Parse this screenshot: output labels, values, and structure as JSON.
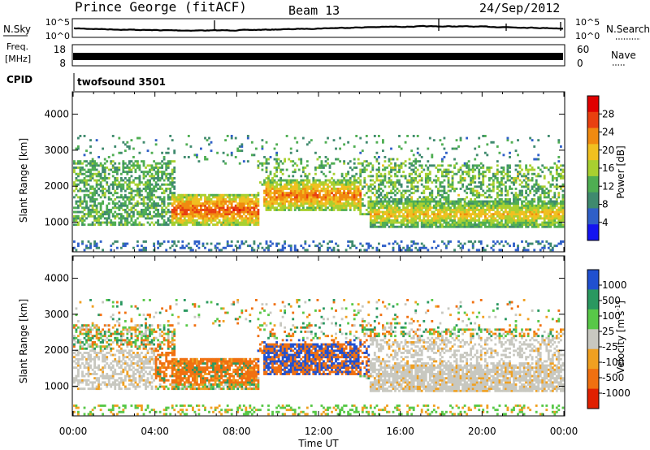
{
  "header": {
    "station": "Prince George (fitACF)",
    "beam": "Beam 13",
    "date": "24/Sep/2012"
  },
  "noise_panel": {
    "left_label": "N.Sky",
    "right_label": "N.Search",
    "left_ticks": [
      "10^5",
      "10^0"
    ],
    "right_ticks": [
      "10^5",
      "10^0"
    ]
  },
  "freq_panel": {
    "left_label_1": "Freq.",
    "left_label_2": "[MHz]",
    "right_label": "Nave",
    "left_ticks": [
      "18",
      "8"
    ],
    "right_ticks": [
      "60",
      "0"
    ]
  },
  "cpid_panel": {
    "label": "CPID",
    "value": "twofsound 3501"
  },
  "chart_data": [
    {
      "type": "heatmap",
      "name": "power",
      "ylabel": "Slant Range [km]",
      "y_ticks": [
        1000,
        2000,
        3000,
        4000
      ],
      "ylim": [
        200,
        4600
      ],
      "xlim_hours": [
        0,
        24
      ],
      "colorbar": {
        "label": "Power [dB]",
        "ticks": [
          "28",
          "24",
          "20",
          "16",
          "12",
          "8",
          "4"
        ],
        "range": [
          0,
          32
        ],
        "colors": [
          "#1414f0",
          "#2f5fc8",
          "#3f8a6e",
          "#4fae52",
          "#a8d030",
          "#f0c020",
          "#f08a10",
          "#e84010",
          "#e00000"
        ]
      },
      "features": [
        {
          "desc": "strong echo band",
          "t0": 4.8,
          "t1": 9.0,
          "r0": 900,
          "r1": 1800,
          "value": 26
        },
        {
          "desc": "strong echo band",
          "t0": 9.3,
          "t1": 14.0,
          "r0": 1300,
          "r1": 2200,
          "value": 24
        },
        {
          "desc": "strong echo band",
          "t0": 14.5,
          "t1": 24.0,
          "r0": 850,
          "r1": 1600,
          "value": 20
        }
      ]
    },
    {
      "type": "heatmap",
      "name": "velocity",
      "xlabel": "Time UT",
      "ylabel": "Slant Range [km]",
      "y_ticks": [
        1000,
        2000,
        3000,
        4000
      ],
      "ylim": [
        200,
        4600
      ],
      "x_ticks": [
        "00:00",
        "04:00",
        "08:00",
        "12:00",
        "16:00",
        "20:00",
        "00:00"
      ],
      "xlim_hours": [
        0,
        24
      ],
      "colorbar": {
        "label": "Velocity [m s^-1]",
        "ticks": [
          "1000",
          "500",
          "100",
          "25",
          "-25",
          "-100",
          "-500",
          "-1000"
        ],
        "colors": [
          "#2050d0",
          "#2a9860",
          "#58c848",
          "#c8c8c0",
          "#f0a020",
          "#f07010",
          "#e02000"
        ]
      }
    }
  ]
}
